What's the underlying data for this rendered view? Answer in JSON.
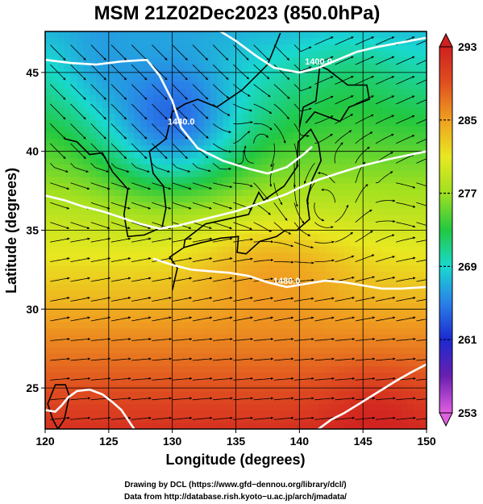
{
  "chart_data": {
    "type": "heatmap",
    "title": "MSM 21Z02Dec2023 (850.0hPa)",
    "xlabel": "Longitude (degrees)",
    "ylabel": "Latitude  (degrees)",
    "xlim": [
      120,
      150
    ],
    "ylim": [
      22.4,
      47.6
    ],
    "x_ticks": [
      120,
      125,
      130,
      135,
      140,
      145,
      150
    ],
    "y_ticks": [
      25,
      30,
      35,
      40,
      45
    ],
    "grid": true,
    "colorbar": {
      "range": [
        253,
        293
      ],
      "ticks": [
        253,
        261,
        269,
        277,
        285,
        293
      ],
      "colors": [
        "#e060e0",
        "#6a1fb0",
        "#1c2ad0",
        "#2a80e8",
        "#19d9d0",
        "#22c840",
        "#a0e020",
        "#e8e820",
        "#f0a020",
        "#e05020",
        "#d02020"
      ]
    },
    "contours": [
      {
        "label": "1440.0",
        "points": [
          [
            120,
            45.8
          ],
          [
            122,
            45.6
          ],
          [
            124,
            45.5
          ],
          [
            126,
            45.7
          ],
          [
            128,
            45.8
          ],
          [
            129,
            44.8
          ],
          [
            130,
            43.2
          ],
          [
            130.7,
            41.5
          ],
          [
            132,
            40.2
          ],
          [
            134,
            39.4
          ],
          [
            136,
            38.9
          ],
          [
            137.5,
            38.6
          ],
          [
            139,
            39.0
          ],
          [
            140.3,
            39.8
          ],
          [
            141,
            40.3
          ]
        ]
      },
      {
        "label": "1400.0",
        "points": [
          [
            133,
            48
          ],
          [
            135,
            47
          ],
          [
            136.5,
            46.1
          ],
          [
            138,
            45.3
          ],
          [
            140,
            45.0
          ],
          [
            141.5,
            45.3
          ],
          [
            143,
            45.8
          ],
          [
            144.5,
            46.3
          ],
          [
            146,
            46.6
          ],
          [
            148,
            46.9
          ],
          [
            150,
            47.2
          ]
        ]
      },
      {
        "label": "",
        "points": [
          [
            120,
            37.2
          ],
          [
            121.5,
            36.9
          ],
          [
            123,
            36.5
          ],
          [
            124.5,
            36.2
          ],
          [
            126,
            35.8
          ],
          [
            127.5,
            35.4
          ],
          [
            129,
            35.1
          ],
          [
            130.5,
            35.3
          ],
          [
            132,
            35.6
          ],
          [
            133.5,
            35.9
          ],
          [
            135,
            36.2
          ],
          [
            136.5,
            36.6
          ],
          [
            138,
            37.0
          ],
          [
            139,
            37.3
          ],
          [
            140,
            37.7
          ],
          [
            141.5,
            38.2
          ],
          [
            143,
            38.6
          ],
          [
            145,
            39.1
          ],
          [
            147,
            39.5
          ],
          [
            150,
            40.0
          ]
        ]
      },
      {
        "label": "1480.0",
        "points": [
          [
            128.5,
            33.2
          ],
          [
            130,
            32.8
          ],
          [
            131.5,
            32.5
          ],
          [
            133,
            32.4
          ],
          [
            134.5,
            32.3
          ],
          [
            136,
            32.1
          ],
          [
            137.5,
            31.7
          ],
          [
            139,
            31.4
          ],
          [
            140.5,
            31.6
          ],
          [
            142,
            31.8
          ],
          [
            143.5,
            31.7
          ],
          [
            145,
            31.5
          ],
          [
            146.5,
            31.3
          ],
          [
            148,
            31.3
          ],
          [
            150,
            31.4
          ]
        ]
      },
      {
        "label": "",
        "points": [
          [
            120,
            23.6
          ],
          [
            120.8,
            23.5
          ],
          [
            121.3,
            23.9
          ],
          [
            121.8,
            24.4
          ],
          [
            122.5,
            24.8
          ],
          [
            123.5,
            24.9
          ],
          [
            124.5,
            24.6
          ],
          [
            125.3,
            24.1
          ],
          [
            126,
            23.6
          ],
          [
            126.5,
            23.0
          ],
          [
            127,
            22.4
          ]
        ]
      },
      {
        "label": "",
        "points": [
          [
            141.5,
            22.4
          ],
          [
            142.5,
            23.0
          ],
          [
            143.5,
            23.4
          ],
          [
            144.5,
            23.9
          ],
          [
            145.5,
            24.4
          ],
          [
            146.5,
            24.9
          ],
          [
            147.5,
            25.4
          ],
          [
            148.8,
            26.0
          ],
          [
            150,
            26.5
          ]
        ]
      }
    ]
  },
  "credits": [
    "Drawing by DCL (https://www.gfd−dennou.org/library/dcl/)",
    "Data from http://database.rish.kyoto−u.ac.jp/arch/jmadata/"
  ]
}
